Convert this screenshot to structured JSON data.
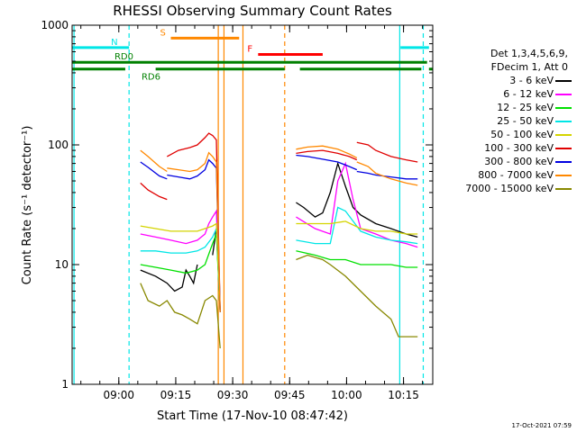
{
  "chart_data": {
    "type": "line",
    "title": "RHESSI Observing Summary Count Rates",
    "xlabel": "Start Time (17-Nov-10 08:47:42)",
    "ylabel": "Count Rate (s⁻¹ detector⁻¹)",
    "yscale": "log",
    "ylim": [
      1,
      1000
    ],
    "xlim": [
      0,
      95
    ],
    "x_units": "minutes after 08:47:42",
    "y_ticks": [
      {
        "value": 1,
        "label": "1"
      },
      {
        "value": 10,
        "label": "10"
      },
      {
        "value": 100,
        "label": "100"
      },
      {
        "value": 1000,
        "label": "1000"
      }
    ],
    "x_ticks": [
      {
        "value": 12.3,
        "label": "09:00"
      },
      {
        "value": 27.3,
        "label": "09:15"
      },
      {
        "value": 42.3,
        "label": "09:30"
      },
      {
        "value": 57.3,
        "label": "09:45"
      },
      {
        "value": 72.3,
        "label": "10:00"
      },
      {
        "value": 87.3,
        "label": "10:15"
      }
    ],
    "legend_header": [
      "Det 1,3,4,5,6,9,",
      "FDecim 1, Att 0"
    ],
    "series": [
      {
        "name": "3 - 6 keV",
        "color": "#000000",
        "segments": [
          {
            "x": [
              18,
              22,
              25,
              27,
              29,
              30,
              31,
              32,
              33
            ],
            "y": [
              9,
              8,
              7,
              6,
              6.5,
              9,
              8,
              7,
              10
            ]
          },
          {
            "x": [
              37,
              38,
              39
            ],
            "y": [
              12,
              20,
              4
            ]
          },
          {
            "x": [
              59,
              61,
              64,
              66,
              68,
              70,
              72,
              74,
              76,
              80,
              84,
              88,
              91
            ],
            "y": [
              33,
              30,
              25,
              27,
              40,
              70,
              45,
              30,
              26,
              22,
              20,
              18,
              17
            ]
          }
        ]
      },
      {
        "name": "6 - 12 keV",
        "color": "#ff00ff",
        "segments": [
          {
            "x": [
              18,
              22,
              26,
              30,
              33,
              35,
              36,
              37,
              38,
              39
            ],
            "y": [
              18,
              17,
              16,
              15,
              16,
              18,
              22,
              25,
              28,
              4
            ]
          },
          {
            "x": [
              59,
              64,
              68,
              70,
              72,
              74,
              76,
              80,
              84,
              88,
              91
            ],
            "y": [
              25,
              20,
              18,
              50,
              70,
              35,
              20,
              18,
              16,
              15,
              14
            ]
          }
        ]
      },
      {
        "name": "12 - 25 keV",
        "color": "#00e000",
        "segments": [
          {
            "x": [
              18,
              22,
              26,
              30,
              33,
              35,
              37,
              38,
              39
            ],
            "y": [
              10,
              9.5,
              9,
              8.5,
              9,
              10,
              15,
              18,
              4
            ]
          },
          {
            "x": [
              59,
              64,
              68,
              72,
              76,
              80,
              84,
              88,
              91
            ],
            "y": [
              13,
              12,
              11,
              11,
              10,
              10,
              10,
              9.5,
              9.5
            ]
          }
        ]
      },
      {
        "name": "25 - 50 keV",
        "color": "#00e6e6",
        "segments": [
          {
            "x": [
              18,
              22,
              26,
              30,
              33,
              35,
              37,
              38,
              39
            ],
            "y": [
              13,
              13,
              12.5,
              12.5,
              13,
              14,
              17,
              20,
              4
            ]
          },
          {
            "x": [
              59,
              64,
              68,
              70,
              72,
              76,
              80,
              84,
              88,
              91
            ],
            "y": [
              16,
              15,
              15,
              30,
              28,
              19,
              17,
              16,
              15.5,
              15
            ]
          }
        ]
      },
      {
        "name": "50 - 100 keV",
        "color": "#d4d400",
        "segments": [
          {
            "x": [
              18,
              22,
              26,
              30,
              33,
              35,
              37,
              38,
              39
            ],
            "y": [
              21,
              20,
              19,
              19,
              19,
              20,
              21,
              22,
              4
            ]
          },
          {
            "x": [
              59,
              64,
              68,
              72,
              76,
              80,
              84,
              88,
              91
            ],
            "y": [
              22,
              22,
              22,
              23,
              20,
              19,
              19,
              18,
              18
            ]
          }
        ]
      },
      {
        "name": "100 - 300 keV",
        "color": "#e00000",
        "segments": [
          {
            "x": [
              18,
              20,
              23,
              25
            ],
            "y": [
              48,
              42,
              37,
              35
            ]
          },
          {
            "x": [
              25,
              28,
              31,
              33,
              35,
              36,
              37,
              38,
              39
            ],
            "y": [
              80,
              90,
              95,
              100,
              115,
              125,
              120,
              110,
              4
            ]
          },
          {
            "x": [
              59,
              62,
              66,
              70,
              73,
              75
            ],
            "y": [
              85,
              88,
              90,
              85,
              80,
              75
            ]
          },
          {
            "x": [
              75,
              78,
              80,
              84,
              88,
              91
            ],
            "y": [
              105,
              100,
              90,
              80,
              75,
              72
            ]
          }
        ]
      },
      {
        "name": "300 - 800 keV",
        "color": "#0000e0",
        "segments": [
          {
            "x": [
              18,
              20,
              23,
              25
            ],
            "y": [
              72,
              65,
              55,
              52
            ]
          },
          {
            "x": [
              25,
              28,
              31,
              33,
              35,
              36,
              37,
              38,
              39
            ],
            "y": [
              56,
              54,
              52,
              55,
              62,
              75,
              70,
              64,
              4
            ]
          },
          {
            "x": [
              59,
              62,
              66,
              70,
              73,
              75
            ],
            "y": [
              82,
              80,
              76,
              72,
              66,
              62
            ]
          },
          {
            "x": [
              75,
              78,
              80,
              84,
              88,
              91
            ],
            "y": [
              60,
              58,
              56,
              54,
              52,
              52
            ]
          }
        ]
      },
      {
        "name": "800 - 7000 keV",
        "color": "#ff8800",
        "segments": [
          {
            "x": [
              18,
              20,
              23,
              25
            ],
            "y": [
              90,
              80,
              66,
              60
            ]
          },
          {
            "x": [
              25,
              28,
              31,
              33,
              35,
              36,
              37,
              38,
              39
            ],
            "y": [
              64,
              62,
              60,
              62,
              70,
              86,
              80,
              72,
              4
            ]
          },
          {
            "x": [
              59,
              62,
              66,
              70,
              73,
              75
            ],
            "y": [
              92,
              96,
              98,
              92,
              84,
              78
            ]
          },
          {
            "x": [
              75,
              78,
              80,
              84,
              88,
              91
            ],
            "y": [
              72,
              66,
              58,
              52,
              48,
              46
            ]
          }
        ]
      },
      {
        "name": "7000 - 15000 keV",
        "color": "#888800",
        "segments": [
          {
            "x": [
              18,
              20,
              23,
              25,
              27,
              29,
              31,
              33,
              35,
              37,
              38,
              39
            ],
            "y": [
              7,
              5,
              4.5,
              5,
              4,
              3.8,
              3.5,
              3.2,
              5,
              5.5,
              5,
              2
            ]
          },
          {
            "x": [
              59,
              62,
              66,
              68,
              72,
              76,
              80,
              84,
              86,
              88,
              91
            ],
            "y": [
              11,
              12,
              11,
              10,
              8,
              6,
              4.5,
              3.5,
              2.5,
              2.5,
              2.5
            ]
          }
        ]
      }
    ],
    "flag_bars": [
      {
        "label": "N",
        "color": "#00e6e6",
        "y": 650,
        "segments": [
          [
            0,
            15
          ],
          [
            86.5,
            94
          ]
        ]
      },
      {
        "label": "S",
        "color": "#ff8800",
        "y": 780,
        "segments": [
          [
            26,
            44
          ]
        ]
      },
      {
        "label": "F",
        "color": "#ff0000",
        "y": 570,
        "segments": [
          [
            49,
            66
          ]
        ]
      },
      {
        "label": "RD0",
        "color": "#008000",
        "y": 490,
        "segments": [
          [
            0,
            93.5
          ]
        ]
      },
      {
        "label": "RD6",
        "color": "#008000",
        "y": 430,
        "segments": [
          [
            0,
            14
          ],
          [
            22,
            56
          ],
          [
            60,
            92
          ],
          [
            94,
            95
          ]
        ]
      }
    ],
    "vertical_lines": [
      {
        "x": 15,
        "color": "#00e6e6",
        "style": "dashed"
      },
      {
        "x": 92.5,
        "color": "#00e6e6",
        "style": "dashed"
      },
      {
        "x": 86.3,
        "color": "#00e6e6",
        "style": "solid"
      },
      {
        "x": 38.5,
        "color": "#ff8800",
        "style": "solid"
      },
      {
        "x": 40,
        "color": "#ff8800",
        "style": "solid"
      },
      {
        "x": 45,
        "color": "#ff8800",
        "style": "solid"
      },
      {
        "x": 56,
        "color": "#ff8800",
        "style": "dashed"
      },
      {
        "x": 0.5,
        "color": "#00e6e6",
        "style": "solid"
      }
    ]
  },
  "footer_timestamp": "17-Oct-2021 07:59"
}
